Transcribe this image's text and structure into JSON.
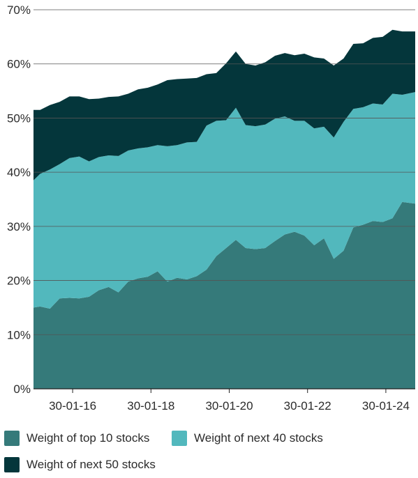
{
  "chart_data": {
    "type": "area",
    "stacked": true,
    "title": "",
    "xlabel": "",
    "ylabel": "",
    "x_ticks": [
      "30-01-16",
      "30-01-18",
      "30-01-20",
      "30-01-22",
      "30-01-24"
    ],
    "x_range": [
      "2015-01-30",
      "2024-10-30"
    ],
    "y_ticks": [
      "0%",
      "10%",
      "20%",
      "30%",
      "40%",
      "50%",
      "60%",
      "70%"
    ],
    "ylim": [
      0,
      70
    ],
    "grid": "horizontal",
    "legend_position": "bottom",
    "x": [
      "2015-01",
      "2015-04",
      "2015-07",
      "2015-10",
      "2016-01",
      "2016-04",
      "2016-07",
      "2016-10",
      "2017-01",
      "2017-04",
      "2017-07",
      "2017-10",
      "2018-01",
      "2018-04",
      "2018-07",
      "2018-10",
      "2019-01",
      "2019-04",
      "2019-07",
      "2019-10",
      "2020-01",
      "2020-04",
      "2020-07",
      "2020-10",
      "2021-01",
      "2021-04",
      "2021-07",
      "2021-10",
      "2022-01",
      "2022-04",
      "2022-07",
      "2022-10",
      "2023-01",
      "2023-04",
      "2023-07",
      "2023-10",
      "2024-01",
      "2024-04",
      "2024-07",
      "2024-10"
    ],
    "series": [
      {
        "name": "Weight of top 10 stocks",
        "color": "#357a7a",
        "values": [
          15.0,
          15.2,
          14.8,
          16.7,
          16.8,
          16.7,
          17.0,
          18.2,
          18.8,
          17.8,
          19.8,
          20.4,
          20.7,
          21.7,
          19.8,
          20.5,
          20.2,
          20.8,
          22.0,
          24.5,
          26.0,
          27.5,
          26.0,
          25.8,
          26.0,
          27.3,
          28.5,
          29.0,
          28.3,
          26.5,
          27.8,
          24.0,
          25.5,
          29.8,
          30.3,
          31.0,
          30.8,
          31.5,
          34.5,
          34.2
        ]
      },
      {
        "name": "Weight of next 40 stocks",
        "color": "#52b8bd",
        "values": [
          23.5,
          24.5,
          25.7,
          24.8,
          25.8,
          26.2,
          25.0,
          24.6,
          24.3,
          25.2,
          24.2,
          24.0,
          23.9,
          23.3,
          25.0,
          24.5,
          25.3,
          24.8,
          26.6,
          25.0,
          23.6,
          24.4,
          22.7,
          22.7,
          22.8,
          22.6,
          21.8,
          20.5,
          21.2,
          21.6,
          20.6,
          22.4,
          23.8,
          21.9,
          21.7,
          21.7,
          21.7,
          23.0,
          19.8,
          20.6
        ]
      },
      {
        "name": "Weight of next 50 stocks",
        "color": "#04363b",
        "values": [
          13.0,
          11.8,
          11.9,
          11.5,
          11.4,
          11.1,
          11.5,
          10.8,
          10.8,
          11.0,
          10.5,
          10.9,
          11.0,
          11.2,
          12.2,
          12.2,
          11.8,
          11.8,
          9.5,
          8.8,
          10.5,
          10.4,
          11.3,
          11.2,
          11.5,
          11.6,
          11.7,
          12.1,
          12.4,
          13.1,
          12.6,
          13.3,
          11.7,
          12.0,
          11.8,
          12.1,
          12.5,
          11.8,
          11.7,
          11.2
        ]
      }
    ]
  }
}
